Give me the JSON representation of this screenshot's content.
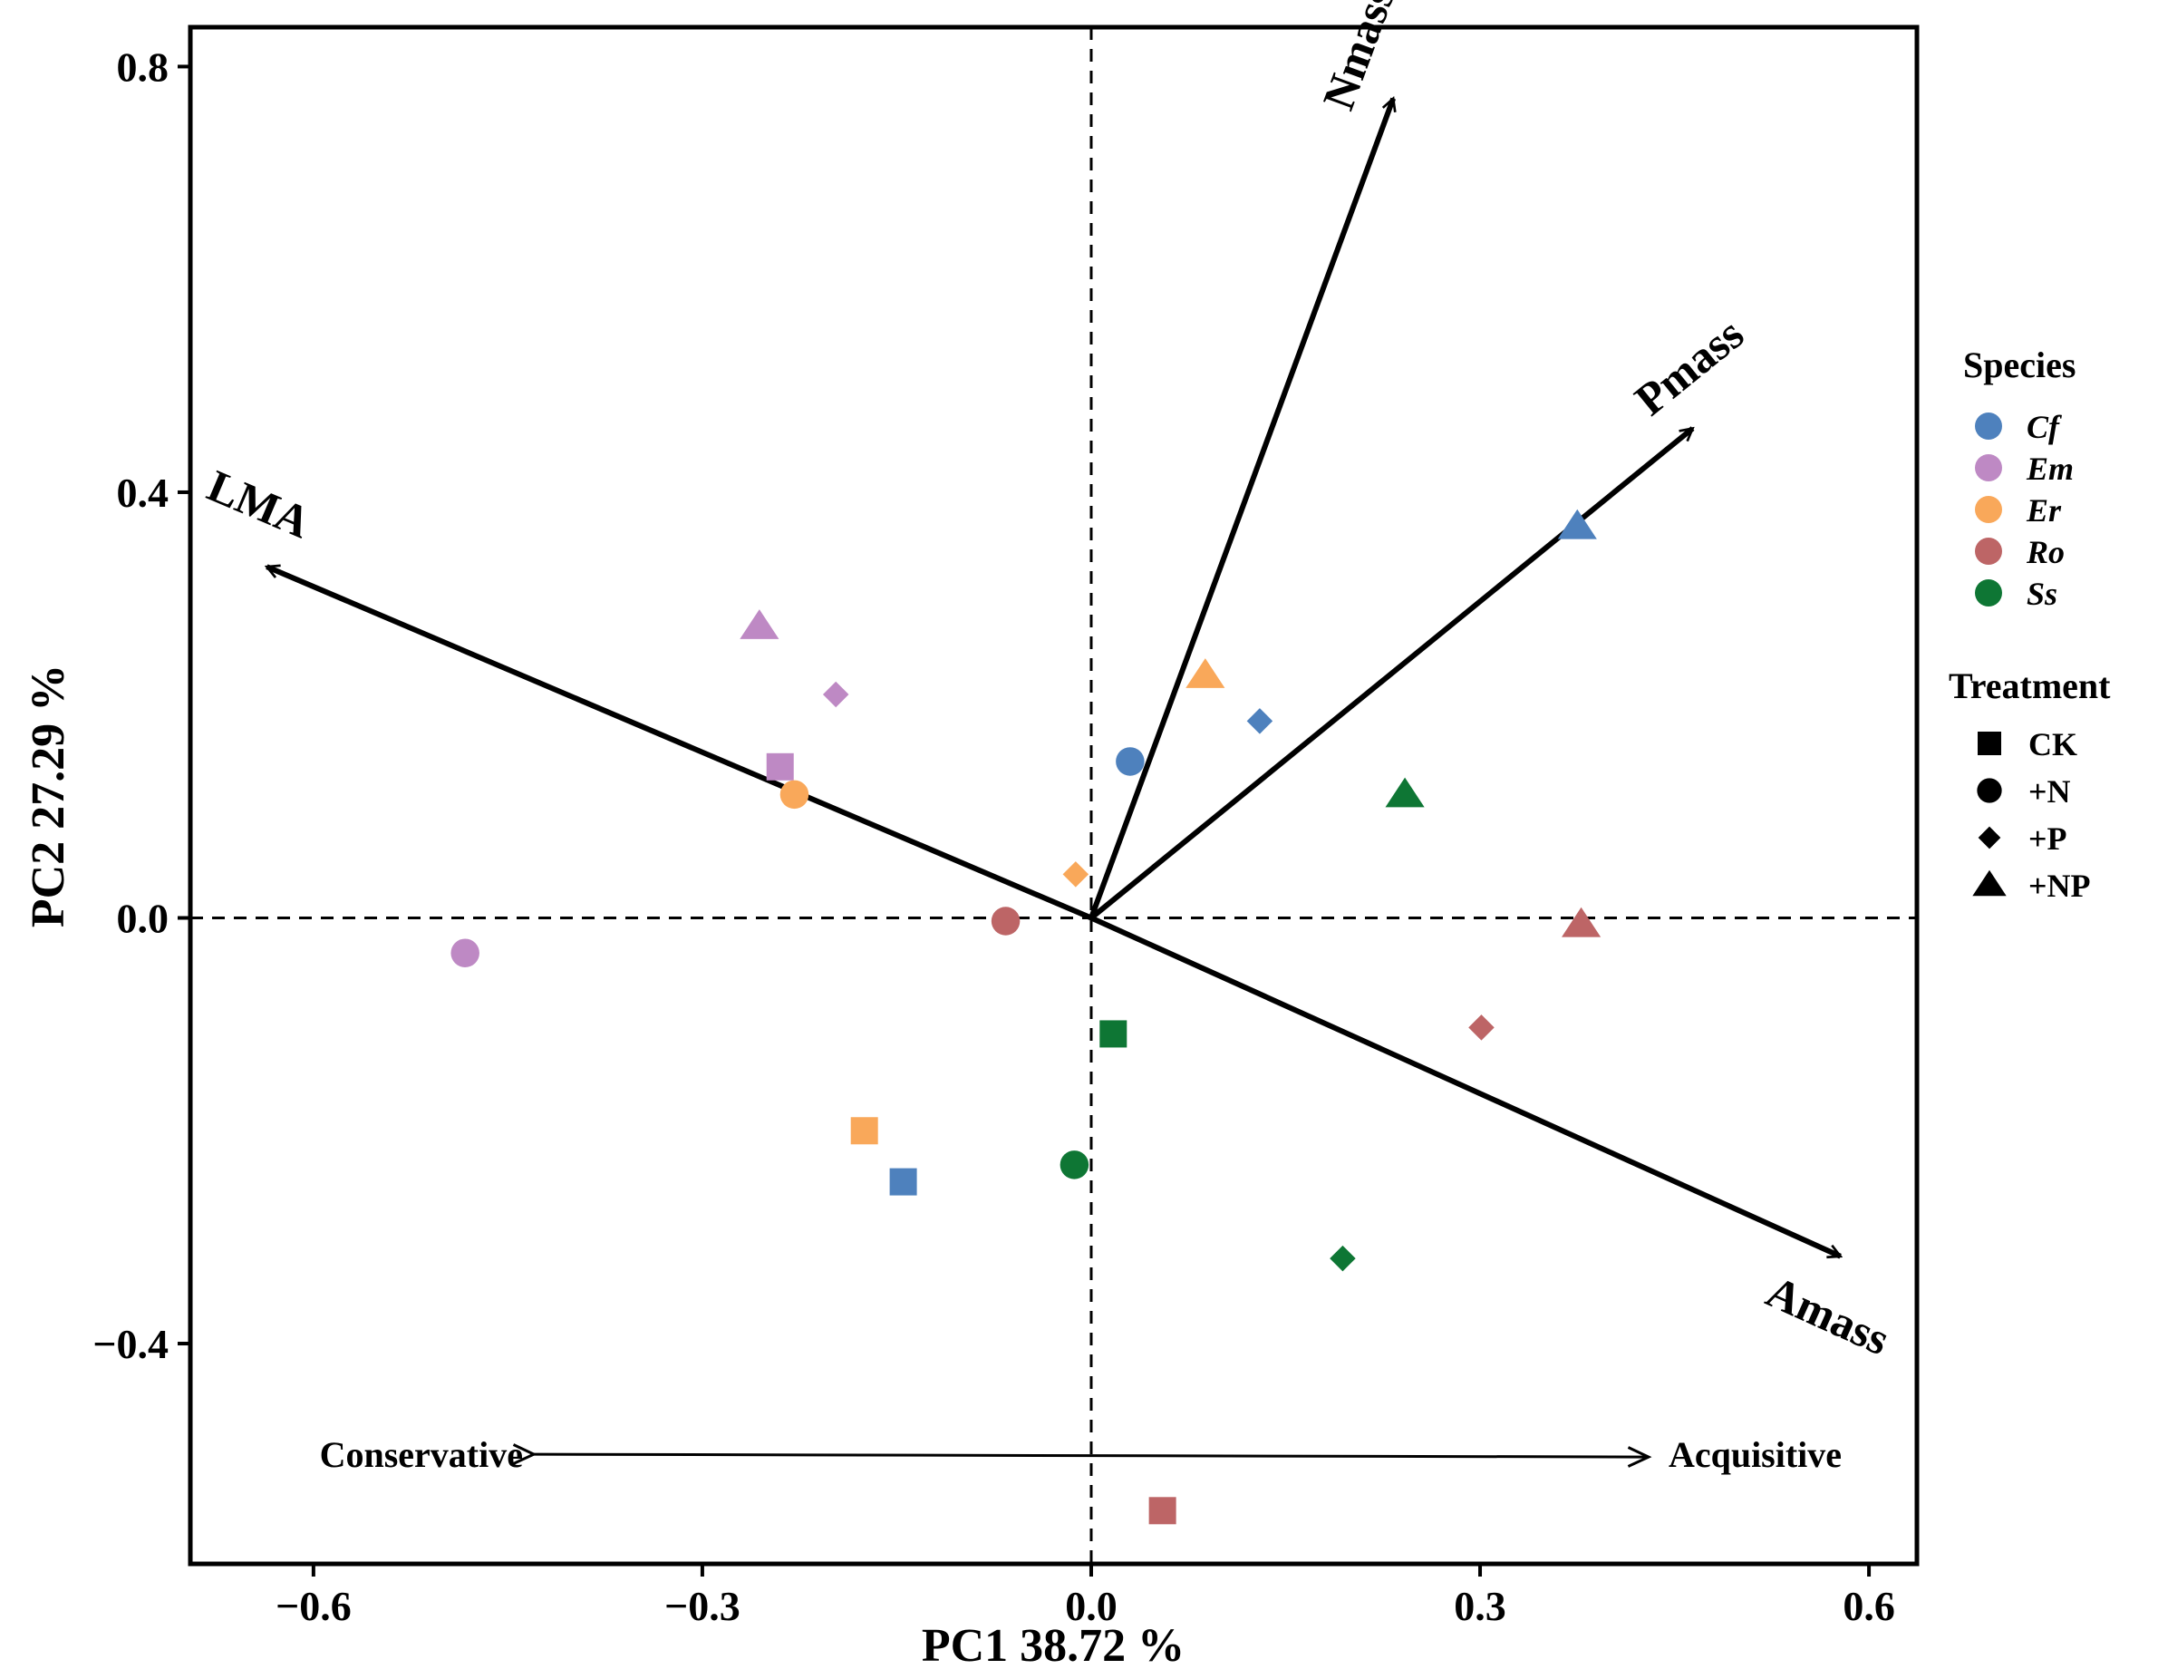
{
  "chart_data": {
    "type": "scatter",
    "subtype": "PCA biplot",
    "xlabel": "PC1 38.72  %",
    "ylabel": "PC2 27.29  %",
    "xlim": [
      -0.695,
      0.637
    ],
    "ylim": [
      -0.607,
      0.837
    ],
    "xticks": [
      -0.6,
      -0.3,
      0.0,
      0.3,
      0.6
    ],
    "xtick_labels": [
      "−0.6",
      "−0.3",
      "0.0",
      "0.3",
      "0.6"
    ],
    "yticks": [
      -0.4,
      0.0,
      0.4,
      0.8
    ],
    "ytick_labels": [
      "−0.4",
      "0.0",
      "0.4",
      "0.8"
    ],
    "grid": false,
    "reference_lines": {
      "x": 0,
      "y": 0,
      "style": "dashed"
    },
    "points": [
      {
        "species": "Cf",
        "treatment": "CK",
        "x": -0.145,
        "y": -0.248
      },
      {
        "species": "Cf",
        "treatment": "+N",
        "x": 0.03,
        "y": 0.147
      },
      {
        "species": "Cf",
        "treatment": "+P",
        "x": 0.13,
        "y": 0.185
      },
      {
        "species": "Cf",
        "treatment": "+NP",
        "x": 0.375,
        "y": 0.368
      },
      {
        "species": "Em",
        "treatment": "CK",
        "x": -0.24,
        "y": 0.142
      },
      {
        "species": "Em",
        "treatment": "+N",
        "x": -0.483,
        "y": -0.033
      },
      {
        "species": "Em",
        "treatment": "+P",
        "x": -0.197,
        "y": 0.21
      },
      {
        "species": "Em",
        "treatment": "+NP",
        "x": -0.256,
        "y": 0.274
      },
      {
        "species": "Er",
        "treatment": "CK",
        "x": -0.175,
        "y": -0.2
      },
      {
        "species": "Er",
        "treatment": "+N",
        "x": -0.229,
        "y": 0.116
      },
      {
        "species": "Er",
        "treatment": "+P",
        "x": -0.012,
        "y": 0.041
      },
      {
        "species": "Er",
        "treatment": "+NP",
        "x": 0.088,
        "y": 0.228
      },
      {
        "species": "Ro",
        "treatment": "CK",
        "x": 0.055,
        "y": -0.557
      },
      {
        "species": "Ro",
        "treatment": "+N",
        "x": -0.066,
        "y": -0.003
      },
      {
        "species": "Ro",
        "treatment": "+P",
        "x": 0.301,
        "y": -0.103
      },
      {
        "species": "Ro",
        "treatment": "+NP",
        "x": 0.378,
        "y": -0.006
      },
      {
        "species": "Ss",
        "treatment": "CK",
        "x": 0.017,
        "y": -0.109
      },
      {
        "species": "Ss",
        "treatment": "+N",
        "x": -0.013,
        "y": -0.232
      },
      {
        "species": "Ss",
        "treatment": "+P",
        "x": 0.194,
        "y": -0.32
      },
      {
        "species": "Ss",
        "treatment": "+NP",
        "x": 0.242,
        "y": 0.116
      }
    ],
    "loadings": [
      {
        "name": "Nmass",
        "x": 0.233,
        "y": 0.77
      },
      {
        "name": "Pmass",
        "x": 0.464,
        "y": 0.46
      },
      {
        "name": "LMA",
        "x": -0.636,
        "y": 0.33
      },
      {
        "name": "Amass",
        "x": 0.578,
        "y": -0.318
      }
    ],
    "species_legend": {
      "title": "Species",
      "items": [
        {
          "label": "Cf",
          "color": "#4E81BD"
        },
        {
          "label": "Em",
          "color": "#BE89C4"
        },
        {
          "label": "Er",
          "color": "#F9A85A"
        },
        {
          "label": "Ro",
          "color": "#BD6566"
        },
        {
          "label": "Ss",
          "color": "#0E7634"
        }
      ]
    },
    "treatment_legend": {
      "title": "Treatment",
      "items": [
        {
          "label": "CK",
          "shape": "square"
        },
        {
          "label": "+N",
          "shape": "circle"
        },
        {
          "label": "+P",
          "shape": "diamond"
        },
        {
          "label": "+NP",
          "shape": "triangle"
        }
      ]
    },
    "gradient_annotation": {
      "left_label": "Conservative",
      "right_label": "Acquisitive",
      "x_from": -0.43,
      "x_to": 0.43,
      "y": -0.504
    }
  }
}
